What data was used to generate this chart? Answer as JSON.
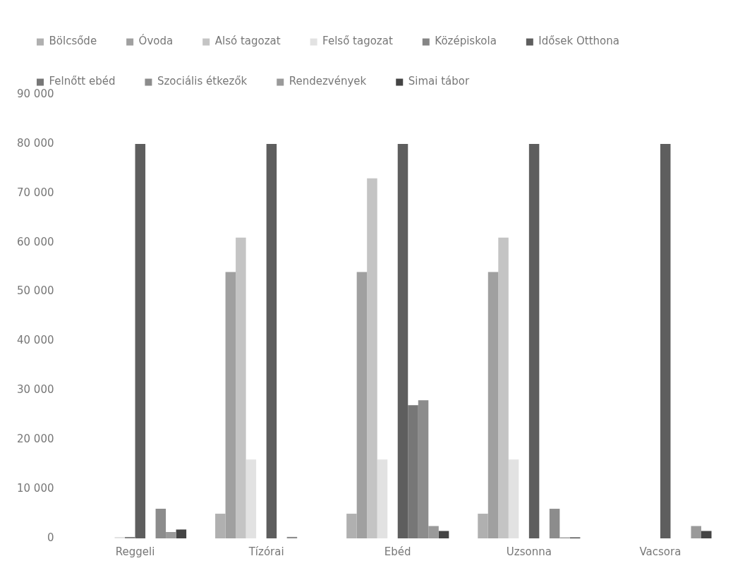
{
  "chart_data": {
    "type": "bar",
    "categories": [
      "Reggeli",
      "Tízórai",
      "Ebéd",
      "Uzsonna",
      "Vacsora"
    ],
    "series": [
      {
        "name": "Bölcsőde",
        "color": "#b0b0b0",
        "values": [
          null,
          5000,
          5000,
          5000,
          null
        ]
      },
      {
        "name": "Óvoda",
        "color": "#a0a0a0",
        "values": [
          null,
          54000,
          54000,
          54000,
          null
        ]
      },
      {
        "name": "Alsó tagozat",
        "color": "#c4c4c4",
        "values": [
          null,
          61000,
          73000,
          61000,
          null
        ]
      },
      {
        "name": "Felső tagozat",
        "color": "#e2e2e2",
        "values": [
          300,
          16000,
          16000,
          16000,
          null
        ]
      },
      {
        "name": "Középiskola",
        "color": "#858585",
        "values": [
          300,
          null,
          null,
          null,
          null
        ]
      },
      {
        "name": "Idősek Otthona",
        "color": "#5e5e5e",
        "values": [
          80000,
          80000,
          80000,
          80000,
          80000
        ]
      },
      {
        "name": "Felnőtt ebéd",
        "color": "#777777",
        "values": [
          null,
          null,
          27000,
          null,
          null
        ]
      },
      {
        "name": "Szociális étkezők",
        "color": "#8c8c8c",
        "values": [
          6000,
          300,
          28000,
          6000,
          null
        ]
      },
      {
        "name": "Rendezvények",
        "color": "#9a9a9a",
        "values": [
          1300,
          null,
          2500,
          200,
          2500
        ]
      },
      {
        "name": "Simai tábor",
        "color": "#444444",
        "values": [
          1800,
          null,
          1500,
          200,
          1500
        ]
      }
    ],
    "ylim": [
      0,
      90000
    ],
    "yticks": [
      {
        "value": 0,
        "label": "0"
      },
      {
        "value": 10000,
        "label": "10 000"
      },
      {
        "value": 20000,
        "label": "20 000"
      },
      {
        "value": 30000,
        "label": "30 000"
      },
      {
        "value": 40000,
        "label": "40 000"
      },
      {
        "value": 50000,
        "label": "50 000"
      },
      {
        "value": 60000,
        "label": "60 000"
      },
      {
        "value": 70000,
        "label": "70 000"
      },
      {
        "value": 80000,
        "label": "80 000"
      },
      {
        "value": 90000,
        "label": "90 000"
      }
    ],
    "grid": false,
    "legend": "top"
  }
}
